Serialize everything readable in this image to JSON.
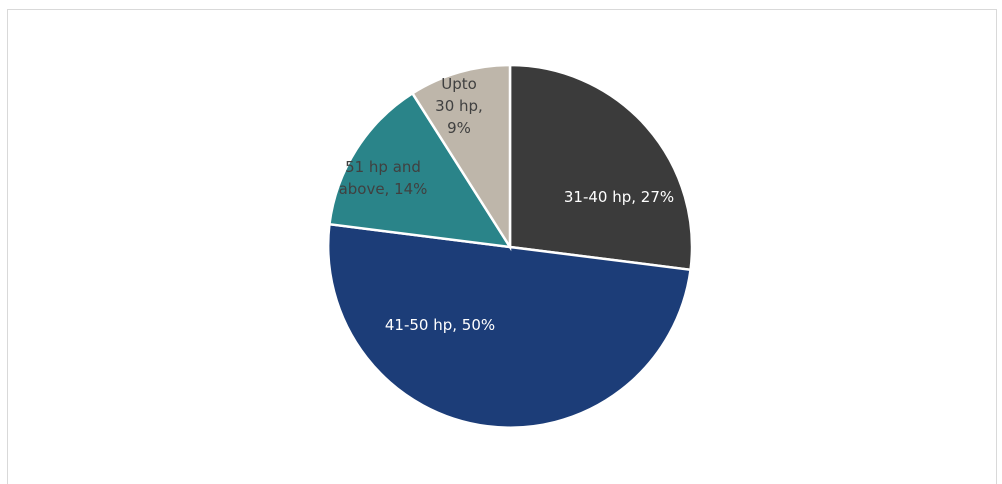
{
  "chart_data": {
    "type": "pie",
    "title": "",
    "start_angle_deg": 0,
    "direction": "clockwise",
    "legend": "none",
    "slices": [
      {
        "name": "31-40 hp",
        "value": 27,
        "percent_label": "27%",
        "color": "#3b3b3b",
        "label_color": "#ffffff",
        "label_lines": [
          "31-40 hp, 27%"
        ]
      },
      {
        "name": "41-50 hp",
        "value": 50,
        "percent_label": "50%",
        "color": "#1c3d78",
        "label_color": "#ffffff",
        "label_lines": [
          "41-50 hp, 50%"
        ]
      },
      {
        "name": "51 hp and above",
        "value": 14,
        "percent_label": "14%",
        "color": "#2a8489",
        "label_color": "#404040",
        "label_lines": [
          "51 hp and",
          "above, 14%"
        ]
      },
      {
        "name": "Upto 30 hp",
        "value": 9,
        "percent_label": "9%",
        "color": "#beb6aa",
        "label_color": "#404040",
        "label_lines": [
          "Upto",
          "30 hp,",
          "9%"
        ]
      }
    ]
  }
}
